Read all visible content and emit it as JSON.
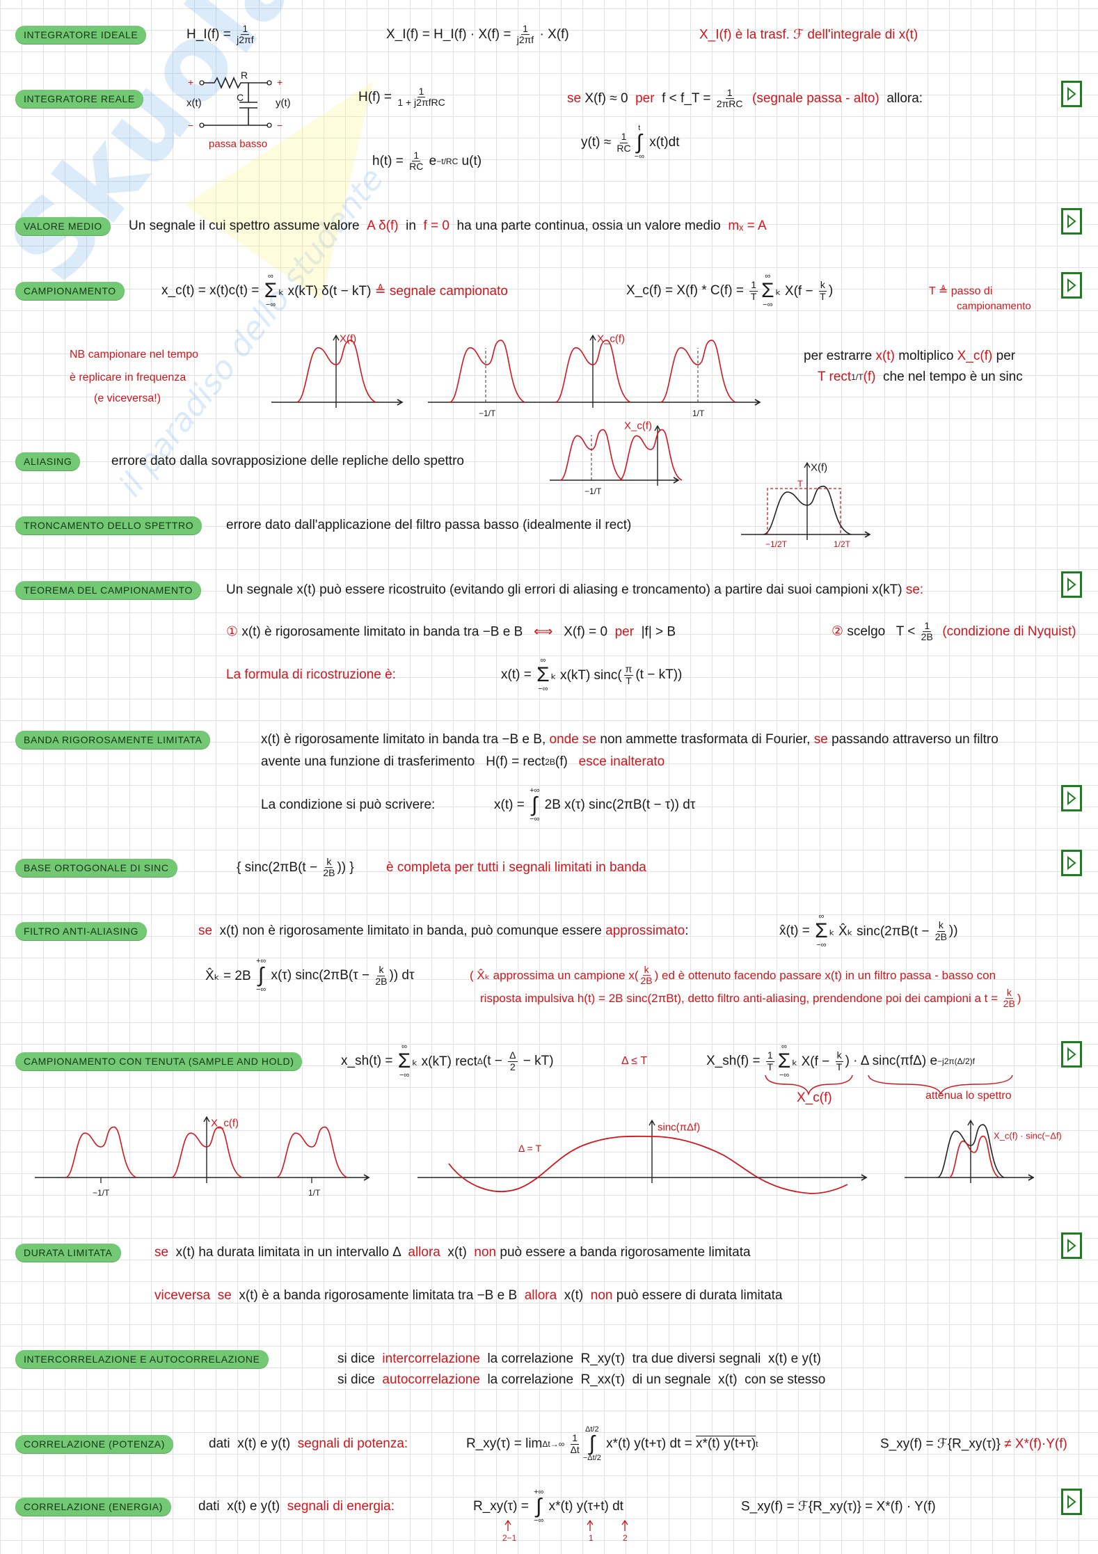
{
  "watermark": {
    "brand": "Skuola.net",
    "tagline": "il paradiso dello studente"
  },
  "sections": [
    {
      "label": "INTEGRATORE IDEALE",
      "lines": [
        [
          {
            "t": "H_I(f) = "
          },
          {
            "n": "1",
            "d": "j2πf"
          }
        ],
        [
          {
            "t": "X_I(f) = H_I(f) · X(f) = "
          },
          {
            "n": "1",
            "d": "j2πf"
          },
          {
            "t": " · X(f)"
          }
        ],
        [
          {
            "t": "X_I(f) è la trasf. ℱ dell'integrale di x(t)",
            "r": 1
          }
        ]
      ]
    },
    {
      "label": "INTEGRATORE REALE",
      "lines": [
        [
          {
            "t": "H(f) = "
          },
          {
            "n": "1",
            "d": "1 + j2πfRC"
          }
        ],
        [
          {
            "t": "h(t) = "
          },
          {
            "n": "1",
            "d": "RC"
          },
          {
            "t": " e"
          },
          {
            "s": "−t/RC"
          },
          {
            "t": " u(t)"
          }
        ],
        [
          {
            "t": "se ",
            "r": 1
          },
          {
            "t": "X(f) ≈ 0  "
          },
          {
            "t": "per  ",
            "r": 1
          },
          {
            "t": "f < f_T = "
          },
          {
            "n": "1",
            "d": "2πRC"
          },
          {
            "t": "  (segnale passa - alto)  ",
            "r": 1
          },
          {
            "t": "allora:"
          }
        ],
        [
          {
            "t": "y(t) ≈ "
          },
          {
            "n": "1",
            "d": "RC"
          },
          {
            "op": "∫",
            "up": "t",
            "lo": "−∞"
          },
          {
            "t": " x(t)dt"
          }
        ]
      ]
    },
    {
      "label": "VALORE MEDIO",
      "lines": [
        [
          {
            "t": "Un segnale il cui spettro assume valore  "
          },
          {
            "t": "A δ(f)",
            "r": 1
          },
          {
            "t": "  in  "
          },
          {
            "t": "f = 0",
            "r": 1
          },
          {
            "t": "  ha una parte continua, ossia un valore medio  "
          },
          {
            "t": "mₓ = A",
            "r": 1
          }
        ]
      ]
    },
    {
      "label": "CAMPIONAMENTO",
      "lines": [
        [
          {
            "t": "x_c(t) = x(t)c(t) = "
          },
          {
            "op": "Σ",
            "up": "∞",
            "lo": "−∞"
          },
          {
            "t": "ₖ x(kT) δ(t − kT) "
          },
          {
            "t": "≜ segnale campionato",
            "r": 1
          }
        ],
        [
          {
            "t": "X_c(f) = X(f) * C(f) = "
          },
          {
            "n": "1",
            "d": "T"
          },
          {
            "op": "Σ",
            "up": "∞",
            "lo": "−∞"
          },
          {
            "t": "ₖ X(f − "
          },
          {
            "n": "k",
            "d": "T"
          },
          {
            "t": ")"
          }
        ],
        [
          {
            "t": "T ≜ passo di",
            "r": 1
          }
        ],
        [
          {
            "t": "campionamento",
            "r": 1
          }
        ],
        [
          {
            "t": "NB campionare nel tempo",
            "r": 1
          }
        ],
        [
          {
            "t": "è replicare in frequenza",
            "r": 1
          }
        ],
        [
          {
            "t": "(e viceversa!)",
            "r": 1
          }
        ],
        [
          {
            "t": "per estrarre "
          },
          {
            "t": "x(t)",
            "r": 1
          },
          {
            "t": " moltiplico "
          },
          {
            "t": "X_c(f)",
            "r": 1
          },
          {
            "t": " per"
          }
        ],
        [
          {
            "t": "T rect",
            "r": 1
          },
          {
            "b": "1/T"
          },
          {
            "t": "(f)",
            "r": 1
          },
          {
            "t": "  che nel tempo è un sinc"
          }
        ]
      ]
    },
    {
      "label": "ALIASING",
      "lines": [
        [
          {
            "t": "errore dato dalla sovrapposizione delle repliche dello spettro"
          }
        ]
      ]
    },
    {
      "label": "TRONCAMENTO DELLO SPETTRO",
      "lines": [
        [
          {
            "t": "errore dato dall'applicazione del filtro passa basso (idealmente il rect)"
          }
        ]
      ]
    },
    {
      "label": "TEOREMA DEL CAMPIONAMENTO",
      "lines": [
        [
          {
            "t": "Un segnale x(t) può essere ricostruito (evitando gli errori di aliasing e troncamento) a partire dai suoi campioni x(kT) "
          },
          {
            "t": "se:",
            "r": 1
          }
        ],
        [
          {
            "t": "①",
            "r": 1
          },
          {
            "t": " x(t) è rigorosamente limitato in banda tra −B e B   "
          },
          {
            "t": "⟺",
            "r": 1
          },
          {
            "t": "   X(f) = 0  "
          },
          {
            "t": "per",
            "r": 1
          },
          {
            "t": "  |f| > B"
          }
        ],
        [
          {
            "t": "②",
            "r": 1
          },
          {
            "t": " scelgo   T < "
          },
          {
            "n": "1",
            "d": "2B"
          },
          {
            "t": "  (condizione di Nyquist)",
            "r": 1
          }
        ],
        [
          {
            "t": "La formula di ricostruzione è:",
            "r": 1
          }
        ],
        [
          {
            "t": "x(t) = "
          },
          {
            "op": "Σ",
            "up": "∞",
            "lo": "−∞"
          },
          {
            "t": "ₖ x(kT) sinc("
          },
          {
            "n": "π",
            "d": "T"
          },
          {
            "t": "(t − kT))"
          }
        ]
      ]
    },
    {
      "label": "BANDA RIGOROSAMENTE LIMITATA",
      "lines": [
        [
          {
            "t": "x(t) è rigorosamente limitato in banda tra −B e B, "
          },
          {
            "t": "onde se",
            "r": 1
          },
          {
            "t": " non ammette trasformata di Fourier, "
          },
          {
            "t": "se",
            "r": 1
          },
          {
            "t": " passando attraverso un filtro"
          }
        ],
        [
          {
            "t": "avente una funzione di trasferimento   H(f) = rect"
          },
          {
            "b": "2B"
          },
          {
            "t": "(f)   "
          },
          {
            "t": "esce inalterato",
            "r": 1
          }
        ],
        [
          {
            "t": "La condizione si può scrivere:"
          }
        ],
        [
          {
            "t": "x(t) = "
          },
          {
            "op": "∫",
            "up": "+∞",
            "lo": "−∞"
          },
          {
            "t": " 2B x(τ) sinc(2πB(t − τ)) dτ"
          }
        ]
      ]
    },
    {
      "label": "BASE ORTOGONALE DI SINC",
      "lines": [
        [
          {
            "t": "{ sinc(2πB(t − "
          },
          {
            "n": "k",
            "d": "2B"
          },
          {
            "t": ")) }"
          }
        ],
        [
          {
            "t": "è completa per tutti i segnali limitati in banda",
            "r": 1
          }
        ]
      ]
    },
    {
      "label": "FILTRO ANTI-ALIASING",
      "lines": [
        [
          {
            "t": "se",
            "r": 1
          },
          {
            "t": "  x(t) non è rigorosamente limitato in banda, può comunque essere "
          },
          {
            "t": "approssimato",
            "r": 1
          },
          {
            "t": ":"
          }
        ],
        [
          {
            "t": "x̂(t) = "
          },
          {
            "op": "Σ",
            "up": "∞",
            "lo": "−∞"
          },
          {
            "t": "ₖ X̂ₖ sinc(2πB(t − "
          },
          {
            "n": "k",
            "d": "2B"
          },
          {
            "t": "))"
          }
        ],
        [
          {
            "t": "X̂ₖ = 2B "
          },
          {
            "op": "∫",
            "up": "+∞",
            "lo": "−∞"
          },
          {
            "t": " x(τ) sinc(2πB(τ − "
          },
          {
            "n": "k",
            "d": "2B"
          },
          {
            "t": ")) dτ"
          }
        ],
        [
          {
            "t": "( X̂ₖ approssima un campione x(",
            "r": 1
          },
          {
            "n": "k",
            "d": "2B",
            "r": 1
          },
          {
            "t": ") ed è ottenuto facendo passare x(t) in un filtro passa - basso con",
            "r": 1
          }
        ],
        [
          {
            "t": "risposta impulsiva h(t) = 2B sinc(2πBt), detto filtro anti-aliasing, prendendone poi dei campioni a t = ",
            "r": 1
          },
          {
            "n": "k",
            "d": "2B",
            "r": 1
          },
          {
            "t": ")",
            "r": 1
          }
        ]
      ]
    },
    {
      "label": "CAMPIONAMENTO CON TENUTA (SAMPLE AND HOLD)",
      "lines": [
        [
          {
            "t": "x_sh(t) = "
          },
          {
            "op": "Σ",
            "up": "∞",
            "lo": "−∞"
          },
          {
            "t": "ₖ x(kT) rect"
          },
          {
            "b": "Δ"
          },
          {
            "t": "(t − "
          },
          {
            "n": "Δ",
            "d": "2"
          },
          {
            "t": " − kT)"
          }
        ],
        [
          {
            "t": "Δ ≤ T",
            "r": 1
          }
        ],
        [
          {
            "t": "X_sh(f) = "
          },
          {
            "n": "1",
            "d": "T"
          },
          {
            "op": "Σ",
            "up": "∞",
            "lo": "−∞"
          },
          {
            "t": "ₖ X(f − "
          },
          {
            "n": "k",
            "d": "T"
          },
          {
            "t": ") · Δ sinc(πfΔ) e"
          },
          {
            "s": "−j2π(Δ/2)f"
          }
        ],
        [
          {
            "t": "X_c(f)",
            "r": 1
          }
        ],
        [
          {
            "t": "attenua lo spettro",
            "r": 1
          }
        ]
      ]
    },
    {
      "label": "DURATA LIMITATA",
      "lines": [
        [
          {
            "t": "se",
            "r": 1
          },
          {
            "t": "  x(t) ha durata limitata in un intervallo Δ  "
          },
          {
            "t": "allora",
            "r": 1
          },
          {
            "t": "  x(t)  "
          },
          {
            "t": "non",
            "r": 1
          },
          {
            "t": " può essere a banda rigorosamente limitata"
          }
        ],
        [
          {
            "t": "viceversa  se",
            "r": 1
          },
          {
            "t": "  x(t) è a banda rigorosamente limitata tra −B e B  "
          },
          {
            "t": "allora",
            "r": 1
          },
          {
            "t": "  x(t)  "
          },
          {
            "t": "non",
            "r": 1
          },
          {
            "t": " può essere di durata limitata"
          }
        ]
      ]
    },
    {
      "label": "INTERCORRELAZIONE E AUTOCORRELAZIONE",
      "lines": [
        [
          {
            "t": "si dice  "
          },
          {
            "t": "intercorrelazione",
            "r": 1
          },
          {
            "t": "  la correlazione  R_xy(τ)  tra due diversi segnali  x(t) e y(t)"
          }
        ],
        [
          {
            "t": "si dice  "
          },
          {
            "t": "autocorrelazione",
            "r": 1
          },
          {
            "t": "  la correlazione  R_xx(τ)  di un segnale  x(t)  con se stesso"
          }
        ]
      ]
    },
    {
      "label": "CORRELAZIONE (POTENZA)",
      "lines": [
        [
          {
            "t": "dati  x(t) e y(t)  "
          },
          {
            "t": "segnali di potenza:",
            "r": 1
          }
        ],
        [
          {
            "t": "R_xy(τ) = lim"
          },
          {
            "b": "Δt→∞"
          },
          {
            "t": " "
          },
          {
            "n": "1",
            "d": "Δt"
          },
          {
            "op": "∫",
            "up": "Δt/2",
            "lo": "−Δt/2"
          },
          {
            "t": " x*(t) y(t+τ) dt = "
          },
          {
            "t": "x*(t) y(t+τ)",
            "ov": 1
          },
          {
            "s": "t"
          }
        ],
        [
          {
            "t": "S_xy(f) = ℱ{R_xy(τ)} "
          },
          {
            "t": "≠ X*(f)·Y(f)",
            "r": 1
          }
        ]
      ]
    },
    {
      "label": "CORRELAZIONE (ENERGIA)",
      "lines": [
        [
          {
            "t": "dati  x(t) e y(t)  "
          },
          {
            "t": "segnali di energia:",
            "r": 1
          }
        ],
        [
          {
            "t": "R_xy(τ) = "
          },
          {
            "op": "∫",
            "up": "+∞",
            "lo": "−∞"
          },
          {
            "t": " x*(t) y(τ+t) dt"
          }
        ],
        [
          {
            "t": "S_xy(f) = ℱ{R_xy(τ)} = X*(f) · Y(f)"
          }
        ]
      ]
    }
  ],
  "labels": {
    "circuit_R": "R",
    "circuit_C": "C",
    "circuit_in": "x(t)",
    "circuit_out": "y(t)",
    "circuit_plus_in": "+",
    "circuit_plus_out": "+",
    "circuit_minus_in": "−",
    "circuit_minus_out": "−",
    "circuit_caption": "passa basso",
    "camp_X": "X(f)",
    "camp_Xc": "X_c(f)",
    "camp_mT": "−1/T",
    "camp_pT": "1/T",
    "alias_Xc": "X_c(f)",
    "alias_mT": "−1/T",
    "tronc_X": "X(f)",
    "tronc_T": "T",
    "tronc_m": "−1/2T",
    "tronc_p": "1/2T",
    "sh_Xc": "X_c(f)",
    "sh_mT": "−1/T",
    "sh_pT": "1/T",
    "sh_sinc": "sinc(πΔf)",
    "sh_delta": "Δ = T",
    "sh_prod": "X_c(f) · sinc(−Δf)",
    "en_a1": "2−1",
    "en_a2": "1",
    "en_a3": "2"
  },
  "icons": {
    "play": "play-icon"
  },
  "colors": {
    "accent_green": "#72c873",
    "red_ink": "#d4141a",
    "play_border": "#1e7d1e"
  }
}
